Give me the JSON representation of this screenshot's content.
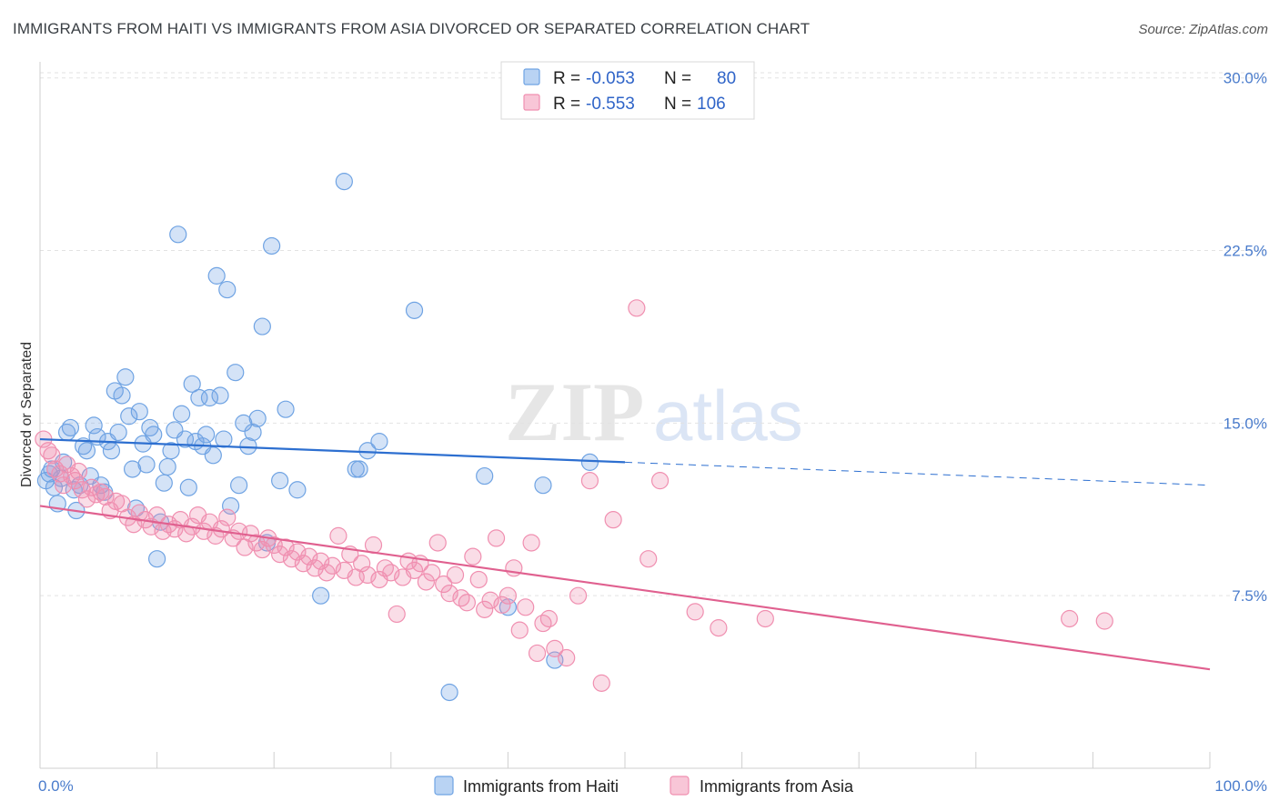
{
  "header": {
    "title": "IMMIGRANTS FROM HAITI VS IMMIGRANTS FROM ASIA DIVORCED OR SEPARATED CORRELATION CHART",
    "source": "Source: ZipAtlas.com"
  },
  "watermark": {
    "zip": "ZIP",
    "atlas": "atlas"
  },
  "legend": {
    "r_label": "R =",
    "n_label": "N =",
    "items": [
      {
        "r": "-0.053",
        "n": "80"
      },
      {
        "r": "-0.553",
        "n": "106"
      }
    ]
  },
  "chart_data": {
    "type": "scatter",
    "xlabel": "",
    "ylabel": "Divorced or Separated",
    "xlim": [
      0,
      100
    ],
    "ylim": [
      0,
      30.7
    ],
    "x_tick_labels": [
      "0.0%",
      "100.0%"
    ],
    "y_ticks": [
      {
        "value": 7.5,
        "label": "7.5%"
      },
      {
        "value": 15.0,
        "label": "15.0%"
      },
      {
        "value": 22.5,
        "label": "22.5%"
      },
      {
        "value": 30.0,
        "label": "30.0%"
      }
    ],
    "grid": "horizontal-dashed",
    "colors": {
      "haiti": "#6fa3e3",
      "haiti_line": "#2d6fd0",
      "asia": "#f08fb0",
      "asia_line": "#e0608f"
    },
    "series": [
      {
        "name": "Immigrants from Haiti",
        "trend": {
          "x0": 0,
          "y0": 14.3,
          "x1": 50,
          "y1": 13.3,
          "dash_to_x": 100,
          "dash_to_y": 12.3
        },
        "points": [
          [
            0.5,
            12.5
          ],
          [
            0.8,
            12.8
          ],
          [
            1.0,
            13.0
          ],
          [
            1.2,
            12.2
          ],
          [
            1.5,
            11.5
          ],
          [
            1.8,
            12.6
          ],
          [
            2.0,
            13.3
          ],
          [
            2.3,
            14.6
          ],
          [
            2.6,
            14.8
          ],
          [
            2.9,
            12.1
          ],
          [
            3.1,
            11.2
          ],
          [
            3.4,
            12.3
          ],
          [
            3.7,
            14.0
          ],
          [
            4.0,
            13.8
          ],
          [
            4.3,
            12.7
          ],
          [
            4.6,
            14.9
          ],
          [
            4.9,
            14.4
          ],
          [
            5.2,
            12.3
          ],
          [
            5.5,
            12.0
          ],
          [
            5.8,
            14.2
          ],
          [
            6.1,
            13.8
          ],
          [
            6.4,
            16.4
          ],
          [
            6.7,
            14.6
          ],
          [
            7.0,
            16.2
          ],
          [
            7.3,
            17.0
          ],
          [
            7.6,
            15.3
          ],
          [
            7.9,
            13.0
          ],
          [
            8.2,
            11.3
          ],
          [
            8.5,
            15.5
          ],
          [
            8.8,
            14.1
          ],
          [
            9.1,
            13.2
          ],
          [
            9.4,
            14.8
          ],
          [
            9.7,
            14.5
          ],
          [
            10.0,
            9.1
          ],
          [
            10.3,
            10.7
          ],
          [
            10.6,
            12.4
          ],
          [
            10.9,
            13.1
          ],
          [
            11.2,
            13.8
          ],
          [
            11.5,
            14.7
          ],
          [
            11.8,
            23.2
          ],
          [
            12.1,
            15.4
          ],
          [
            12.4,
            14.3
          ],
          [
            12.7,
            12.2
          ],
          [
            13.0,
            16.7
          ],
          [
            13.3,
            14.2
          ],
          [
            13.6,
            16.1
          ],
          [
            13.9,
            14.0
          ],
          [
            14.2,
            14.5
          ],
          [
            14.5,
            16.1
          ],
          [
            14.8,
            13.6
          ],
          [
            15.1,
            21.4
          ],
          [
            15.4,
            16.2
          ],
          [
            15.7,
            14.3
          ],
          [
            16.0,
            20.8
          ],
          [
            16.3,
            11.4
          ],
          [
            16.7,
            17.2
          ],
          [
            17.0,
            12.3
          ],
          [
            17.4,
            15.0
          ],
          [
            17.8,
            14.0
          ],
          [
            18.2,
            14.6
          ],
          [
            18.6,
            15.2
          ],
          [
            19.0,
            19.2
          ],
          [
            19.4,
            9.8
          ],
          [
            19.8,
            22.7
          ],
          [
            20.5,
            12.5
          ],
          [
            21.0,
            15.6
          ],
          [
            22.0,
            12.1
          ],
          [
            24.0,
            7.5
          ],
          [
            26.0,
            25.5
          ],
          [
            27.0,
            13.0
          ],
          [
            27.3,
            13.0
          ],
          [
            28.0,
            13.8
          ],
          [
            29.0,
            14.2
          ],
          [
            32.0,
            19.9
          ],
          [
            35.0,
            3.3
          ],
          [
            38.0,
            12.7
          ],
          [
            40.0,
            7.0
          ],
          [
            43.0,
            12.3
          ],
          [
            44.0,
            4.7
          ],
          [
            47.0,
            13.3
          ]
        ]
      },
      {
        "name": "Immigrants from Asia",
        "trend": {
          "x0": 0,
          "y0": 11.4,
          "x1": 100,
          "y1": 4.3
        },
        "points": [
          [
            0.3,
            14.3
          ],
          [
            0.7,
            13.8
          ],
          [
            1.0,
            13.6
          ],
          [
            1.3,
            13.0
          ],
          [
            1.7,
            12.8
          ],
          [
            2.0,
            12.3
          ],
          [
            2.3,
            13.2
          ],
          [
            2.7,
            12.7
          ],
          [
            3.0,
            12.5
          ],
          [
            3.3,
            12.9
          ],
          [
            3.6,
            12.1
          ],
          [
            4.0,
            11.7
          ],
          [
            4.4,
            12.2
          ],
          [
            4.8,
            11.9
          ],
          [
            5.2,
            12.0
          ],
          [
            5.6,
            11.8
          ],
          [
            6.0,
            11.2
          ],
          [
            6.5,
            11.6
          ],
          [
            7.0,
            11.5
          ],
          [
            7.5,
            10.9
          ],
          [
            8.0,
            10.6
          ],
          [
            8.5,
            11.1
          ],
          [
            9.0,
            10.8
          ],
          [
            9.5,
            10.5
          ],
          [
            10.0,
            11.0
          ],
          [
            10.5,
            10.3
          ],
          [
            11.0,
            10.6
          ],
          [
            11.5,
            10.4
          ],
          [
            12.0,
            10.8
          ],
          [
            12.5,
            10.2
          ],
          [
            13.0,
            10.5
          ],
          [
            13.5,
            11.0
          ],
          [
            14.0,
            10.3
          ],
          [
            14.5,
            10.7
          ],
          [
            15.0,
            10.1
          ],
          [
            15.5,
            10.4
          ],
          [
            16.0,
            10.9
          ],
          [
            16.5,
            10.0
          ],
          [
            17.0,
            10.3
          ],
          [
            17.5,
            9.6
          ],
          [
            18.0,
            10.2
          ],
          [
            18.5,
            9.8
          ],
          [
            19.0,
            9.5
          ],
          [
            19.5,
            10.0
          ],
          [
            20.0,
            9.7
          ],
          [
            20.5,
            9.3
          ],
          [
            21.0,
            9.6
          ],
          [
            21.5,
            9.1
          ],
          [
            22.0,
            9.4
          ],
          [
            22.5,
            8.9
          ],
          [
            23.0,
            9.2
          ],
          [
            23.5,
            8.7
          ],
          [
            24.0,
            9.0
          ],
          [
            24.5,
            8.5
          ],
          [
            25.0,
            8.8
          ],
          [
            25.5,
            10.1
          ],
          [
            26.0,
            8.6
          ],
          [
            26.5,
            9.3
          ],
          [
            27.0,
            8.3
          ],
          [
            27.5,
            8.9
          ],
          [
            28.0,
            8.4
          ],
          [
            28.5,
            9.7
          ],
          [
            29.0,
            8.2
          ],
          [
            29.5,
            8.7
          ],
          [
            30.0,
            8.5
          ],
          [
            30.5,
            6.7
          ],
          [
            31.0,
            8.3
          ],
          [
            31.5,
            9.0
          ],
          [
            32.0,
            8.6
          ],
          [
            32.5,
            8.9
          ],
          [
            33.0,
            8.1
          ],
          [
            33.5,
            8.5
          ],
          [
            34.0,
            9.8
          ],
          [
            34.5,
            8.0
          ],
          [
            35.0,
            7.6
          ],
          [
            35.5,
            8.4
          ],
          [
            36.0,
            7.4
          ],
          [
            36.5,
            7.2
          ],
          [
            37.0,
            9.2
          ],
          [
            37.5,
            8.2
          ],
          [
            38.0,
            6.9
          ],
          [
            38.5,
            7.3
          ],
          [
            39.0,
            10.0
          ],
          [
            39.5,
            7.1
          ],
          [
            40.0,
            7.5
          ],
          [
            40.5,
            8.7
          ],
          [
            41.0,
            6.0
          ],
          [
            41.5,
            7.0
          ],
          [
            42.0,
            9.8
          ],
          [
            42.5,
            5.0
          ],
          [
            43.0,
            6.3
          ],
          [
            43.5,
            6.5
          ],
          [
            44.0,
            5.2
          ],
          [
            45.0,
            4.8
          ],
          [
            46.0,
            7.5
          ],
          [
            47.0,
            12.5
          ],
          [
            48.0,
            3.7
          ],
          [
            49.0,
            10.8
          ],
          [
            51.0,
            20.0
          ],
          [
            52.0,
            9.1
          ],
          [
            53.0,
            12.5
          ],
          [
            56.0,
            6.8
          ],
          [
            58.0,
            6.1
          ],
          [
            62.0,
            6.5
          ],
          [
            88.0,
            6.5
          ],
          [
            91.0,
            6.4
          ]
        ]
      }
    ]
  }
}
